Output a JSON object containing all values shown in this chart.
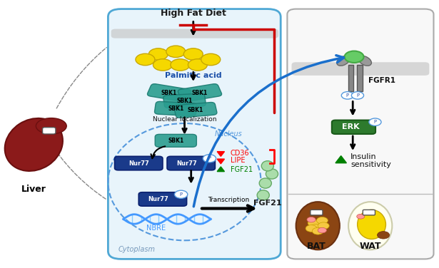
{
  "fig_width": 6.15,
  "fig_height": 3.76,
  "bg_color": "#ffffff",
  "title": "High Fat Diet",
  "palmitic_acid": "Palmitic acid",
  "nuclear_loc": "Nuclear localization",
  "nucleus_label": "Nucleus",
  "cytoplasm_label": "Cytoplasm",
  "nbre_label": "NBRE",
  "transcription_label": "Transcription",
  "fgf21_label": "FGF21",
  "bat_label": "BAT",
  "wat_label": "WAT",
  "liver_label": "Liver",
  "fgfr1_label": "FGFR1",
  "erk_label": "ERK",
  "insulin_label": "Insulin\nsensitivity",
  "sbk1_color": "#2a9d8f",
  "nur77_color": "#1a3a8a",
  "erk_color": "#2d7a2d",
  "red_arrow_color": "#cc0000",
  "blue_arrow_color": "#1a6fcc",
  "black_color": "#111111"
}
